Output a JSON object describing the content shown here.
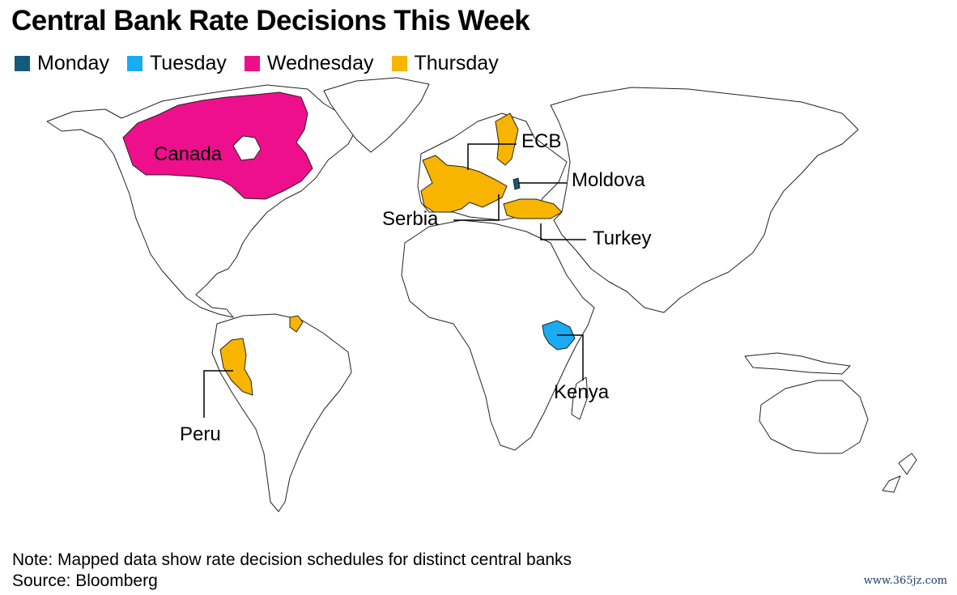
{
  "title": "Central Bank Rate Decisions This Week",
  "legend": [
    {
      "label": "Monday",
      "color": "#145a7a"
    },
    {
      "label": "Tuesday",
      "color": "#1aabf2"
    },
    {
      "label": "Wednesday",
      "color": "#ee0f8c"
    },
    {
      "label": "Thursday",
      "color": "#f7b500"
    }
  ],
  "labels": {
    "canada": "Canada",
    "ecb": "ECB",
    "moldova": "Moldova",
    "serbia": "Serbia",
    "turkey": "Turkey",
    "peru": "Peru",
    "kenya": "Kenya"
  },
  "note": "Note: Mapped data show rate decision schedules for distinct central banks",
  "source": "Source: Bloomberg",
  "watermark": "www.365jz.com"
}
